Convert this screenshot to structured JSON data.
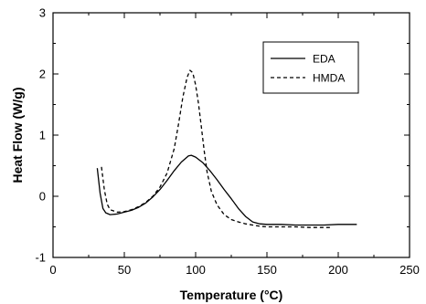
{
  "chart_data": {
    "type": "line",
    "title": "",
    "xlabel": "Temperature (°C)",
    "ylabel": "Heat Flow (W/g)",
    "xlim": [
      0,
      250
    ],
    "ylim": [
      -1,
      3
    ],
    "xticks": [
      0,
      50,
      100,
      150,
      200,
      250
    ],
    "yticks": [
      -1,
      0,
      1,
      2,
      3
    ],
    "grid": false,
    "legend_position": "top-right",
    "series": [
      {
        "name": "EDA",
        "style": "solid",
        "color": "#000000",
        "x": [
          31,
          33,
          35,
          37,
          40,
          45,
          50,
          55,
          60,
          65,
          70,
          75,
          80,
          85,
          90,
          95,
          97,
          100,
          105,
          110,
          115,
          120,
          125,
          130,
          135,
          140,
          145,
          150,
          160,
          170,
          180,
          190,
          200,
          213
        ],
        "y": [
          0.46,
          0.05,
          -0.2,
          -0.27,
          -0.3,
          -0.29,
          -0.26,
          -0.23,
          -0.18,
          -0.11,
          -0.01,
          0.11,
          0.26,
          0.42,
          0.56,
          0.66,
          0.67,
          0.64,
          0.55,
          0.42,
          0.27,
          0.11,
          -0.04,
          -0.2,
          -0.33,
          -0.42,
          -0.45,
          -0.46,
          -0.46,
          -0.47,
          -0.47,
          -0.47,
          -0.46,
          -0.46
        ]
      },
      {
        "name": "HMDA",
        "style": "dashed",
        "color": "#000000",
        "x": [
          34,
          36,
          38,
          40,
          45,
          50,
          55,
          60,
          65,
          70,
          75,
          80,
          85,
          88,
          91,
          94,
          96,
          98,
          100,
          102,
          104,
          106,
          108,
          111,
          115,
          120,
          125,
          130,
          135,
          140,
          145,
          150,
          160,
          170,
          180,
          195
        ],
        "y": [
          0.48,
          0.1,
          -0.13,
          -0.22,
          -0.26,
          -0.25,
          -0.22,
          -0.17,
          -0.1,
          0.0,
          0.15,
          0.38,
          0.78,
          1.18,
          1.62,
          1.94,
          2.06,
          2.02,
          1.82,
          1.52,
          1.14,
          0.74,
          0.4,
          0.08,
          -0.14,
          -0.3,
          -0.38,
          -0.42,
          -0.45,
          -0.47,
          -0.49,
          -0.5,
          -0.5,
          -0.5,
          -0.51,
          -0.51
        ]
      }
    ]
  }
}
